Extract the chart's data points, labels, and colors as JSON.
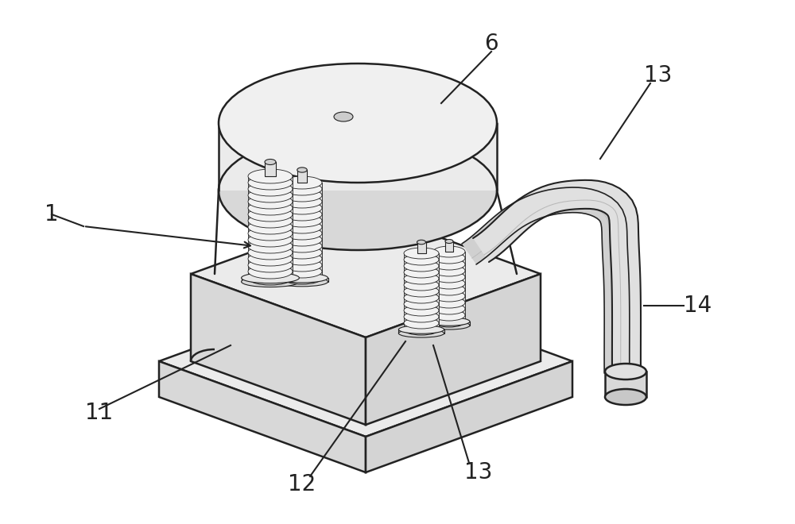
{
  "figure_size": [
    10.0,
    6.6
  ],
  "dpi": 100,
  "background_color": "#ffffff",
  "line_color": "#222222",
  "fill_light": "#ebebeb",
  "fill_mid": "#d8d8d8",
  "fill_dark": "#c0c0c0",
  "label_fontsize": 20,
  "lw_main": 1.8,
  "lw_thin": 0.8
}
